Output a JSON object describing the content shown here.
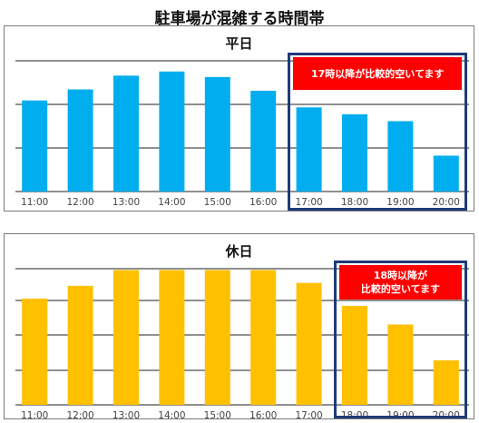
{
  "page": {
    "title": "駐車場が混雑する時間帯"
  },
  "chart_data": [
    {
      "type": "bar",
      "title": "平日",
      "categories": [
        "11:00",
        "12:00",
        "13:00",
        "14:00",
        "15:00",
        "16:00",
        "17:00",
        "18:00",
        "19:00",
        "20:00"
      ],
      "values": [
        66,
        74,
        84,
        87,
        83,
        73,
        61,
        56,
        51,
        26
      ],
      "ylim": [
        0,
        100
      ],
      "grid": true,
      "bar_color": "#00aeef",
      "annotation": {
        "text": "17時以降が比較的空いてます",
        "from_category": "17:00",
        "to_category": "20:00"
      }
    },
    {
      "type": "bar",
      "title": "休日",
      "categories": [
        "11:00",
        "12:00",
        "13:00",
        "14:00",
        "15:00",
        "16:00",
        "17:00",
        "18:00",
        "19:00",
        "20:00"
      ],
      "values": [
        74,
        83,
        94,
        94,
        94,
        94,
        85,
        69,
        56,
        31
      ],
      "ylim": [
        0,
        100
      ],
      "grid": true,
      "bar_color": "#ffc000",
      "annotation": {
        "text": "18時以降が\n比較的空いてます",
        "from_category": "18:00",
        "to_category": "20:00"
      }
    }
  ],
  "colors": {
    "callout_fill": "#ff0000",
    "callout_border": "#1f3a78",
    "gridline": "#222222",
    "axis_text": "#444444"
  }
}
